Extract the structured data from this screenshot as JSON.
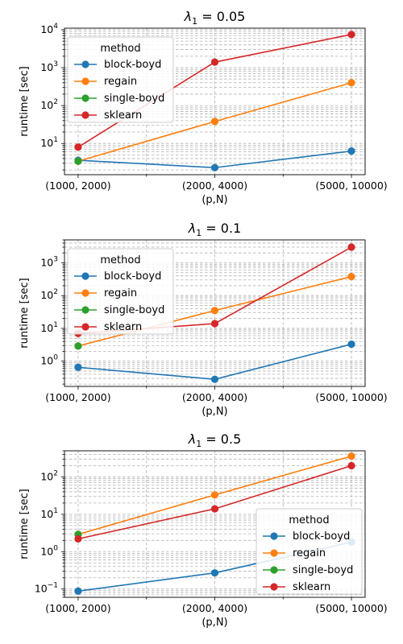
{
  "chart_data": [
    {
      "type": "line",
      "title_main": "λ",
      "title_sub": "1",
      "title_rest": " = 0.05",
      "xlabel": "(p,N)",
      "ylabel": "runtime [sec]",
      "yscale": "log",
      "ylim": [
        1.5,
        11000
      ],
      "yticks": [
        {
          "base": "10",
          "exp": "1",
          "value": 10
        },
        {
          "base": "10",
          "exp": "2",
          "value": 100
        },
        {
          "base": "10",
          "exp": "3",
          "value": 1000
        },
        {
          "base": "10",
          "exp": "4",
          "value": 10000
        }
      ],
      "categories": [
        "(1000, 2000)",
        "(2000, 4000)",
        "(5000, 10000)"
      ],
      "legend_title": "method",
      "legend_position": "upper-left",
      "grid": true,
      "series": [
        {
          "name": "block-boyd",
          "color": "#1f77b4",
          "values": [
            3.6,
            2.3,
            6.3
          ]
        },
        {
          "name": "regain",
          "color": "#ff7f0e",
          "values": [
            3.4,
            38,
            400
          ]
        },
        {
          "name": "single-boyd",
          "color": "#2ca02c",
          "values": [
            3.4,
            null,
            null
          ]
        },
        {
          "name": "sklearn",
          "color": "#d62728",
          "values": [
            8,
            1400,
            7500
          ]
        }
      ]
    },
    {
      "type": "line",
      "title_main": "λ",
      "title_sub": "1",
      "title_rest": " = 0.1",
      "xlabel": "(p,N)",
      "ylabel": "runtime [sec]",
      "yscale": "log",
      "ylim": [
        0.17,
        5000
      ],
      "yticks": [
        {
          "base": "10",
          "exp": "0",
          "value": 1
        },
        {
          "base": "10",
          "exp": "1",
          "value": 10
        },
        {
          "base": "10",
          "exp": "2",
          "value": 100
        },
        {
          "base": "10",
          "exp": "3",
          "value": 1000
        }
      ],
      "categories": [
        "(1000, 2000)",
        "(2000, 4000)",
        "(5000, 10000)"
      ],
      "legend_title": "method",
      "legend_position": "upper-left",
      "grid": true,
      "series": [
        {
          "name": "block-boyd",
          "color": "#1f77b4",
          "values": [
            0.65,
            0.28,
            3.3
          ]
        },
        {
          "name": "regain",
          "color": "#ff7f0e",
          "values": [
            2.9,
            35,
            380
          ]
        },
        {
          "name": "single-boyd",
          "color": "#2ca02c",
          "values": [
            2.9,
            null,
            null
          ]
        },
        {
          "name": "sklearn",
          "color": "#d62728",
          "values": [
            7,
            14,
            3000
          ]
        }
      ]
    },
    {
      "type": "line",
      "title_main": "λ",
      "title_sub": "1",
      "title_rest": " = 0.5",
      "xlabel": "(p,N)",
      "ylabel": "runtime [sec]",
      "yscale": "log",
      "ylim": [
        0.06,
        500
      ],
      "yticks": [
        {
          "base": "10",
          "exp": "−1",
          "value": 0.1
        },
        {
          "base": "10",
          "exp": "0",
          "value": 1
        },
        {
          "base": "10",
          "exp": "1",
          "value": 10
        },
        {
          "base": "10",
          "exp": "2",
          "value": 100
        }
      ],
      "categories": [
        "(1000, 2000)",
        "(2000, 4000)",
        "(5000, 10000)"
      ],
      "legend_title": "method",
      "legend_position": "lower-right",
      "grid": true,
      "series": [
        {
          "name": "block-boyd",
          "color": "#1f77b4",
          "values": [
            0.088,
            0.27,
            1.8
          ]
        },
        {
          "name": "regain",
          "color": "#ff7f0e",
          "values": [
            2.9,
            33,
            360
          ]
        },
        {
          "name": "single-boyd",
          "color": "#2ca02c",
          "values": [
            2.9,
            null,
            null
          ]
        },
        {
          "name": "sklearn",
          "color": "#d62728",
          "values": [
            2.2,
            14,
            200
          ]
        }
      ]
    }
  ]
}
